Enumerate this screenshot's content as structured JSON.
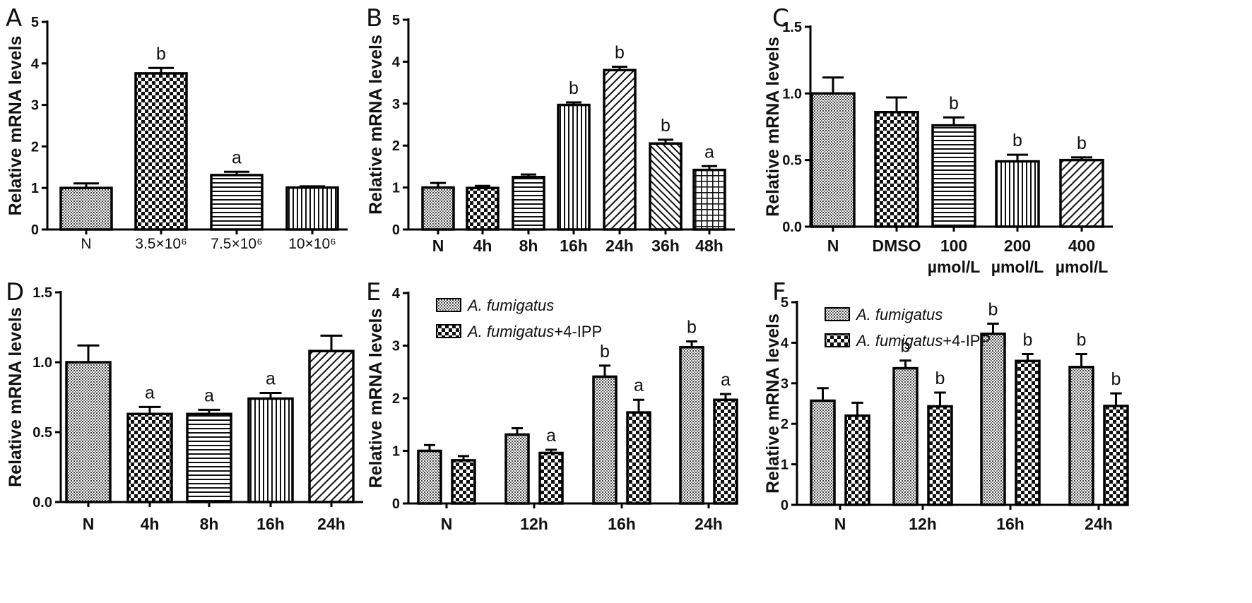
{
  "chart_data": [
    {
      "panel": "A",
      "type": "bar",
      "ylabel": "Relative mRNA levels",
      "ylim": [
        0,
        5
      ],
      "yticks": [
        "0",
        "1",
        "2",
        "3",
        "4",
        "5"
      ],
      "categories": [
        "N",
        "3.5×10⁶",
        "7.5×10⁶",
        "10×10⁶"
      ],
      "values": [
        1.0,
        3.76,
        1.31,
        1.01
      ],
      "errors": [
        0.11,
        0.13,
        0.08,
        0.03
      ],
      "sig": [
        "",
        "b",
        "a",
        ""
      ],
      "patterns": [
        "dots",
        "check",
        "hlines",
        "vlines"
      ]
    },
    {
      "panel": "B",
      "type": "bar",
      "ylabel": "Relative mRNA levels",
      "ylim": [
        0,
        5
      ],
      "yticks": [
        "0",
        "1",
        "2",
        "3",
        "4",
        "5"
      ],
      "categories": [
        "N",
        "4h",
        "8h",
        "16h",
        "24h",
        "36h",
        "48h"
      ],
      "values": [
        1.0,
        0.99,
        1.25,
        2.97,
        3.8,
        2.05,
        1.42
      ],
      "errors": [
        0.11,
        0.05,
        0.06,
        0.06,
        0.08,
        0.09,
        0.09
      ],
      "sig": [
        "",
        "",
        "",
        "b",
        "b",
        "b",
        "a"
      ],
      "patterns": [
        "dots",
        "check",
        "hlines",
        "vlines",
        "diag",
        "diagback",
        "grid"
      ]
    },
    {
      "panel": "C",
      "type": "bar",
      "ylabel": "Relative mRNA levels",
      "ylim": [
        0,
        1.5
      ],
      "yticks": [
        "0.0",
        "0.5",
        "1.0",
        "1.5"
      ],
      "categories": [
        "N",
        "DMSO",
        "100 µmol/L",
        "200 µmol/L",
        "400 µmol/L"
      ],
      "values": [
        1.0,
        0.86,
        0.76,
        0.49,
        0.5
      ],
      "errors": [
        0.12,
        0.11,
        0.06,
        0.05,
        0.02
      ],
      "sig": [
        "",
        "",
        "b",
        "b",
        "b"
      ],
      "patterns": [
        "dots",
        "check",
        "hlines",
        "vlines",
        "diag"
      ]
    },
    {
      "panel": "D",
      "type": "bar",
      "ylabel": "Relative mRNA levels",
      "ylim": [
        0,
        1.5
      ],
      "yticks": [
        "0.0",
        "0.5",
        "1.0",
        "1.5"
      ],
      "categories": [
        "N",
        "4h",
        "8h",
        "16h",
        "24h"
      ],
      "values": [
        1.0,
        0.63,
        0.63,
        0.74,
        1.08
      ],
      "errors": [
        0.12,
        0.05,
        0.03,
        0.04,
        0.11
      ],
      "sig": [
        "",
        "a",
        "a",
        "a",
        ""
      ],
      "patterns": [
        "dots",
        "check",
        "hlines",
        "vlines",
        "diag"
      ]
    },
    {
      "panel": "E",
      "type": "bar",
      "ylabel": "Relative mRNA levels",
      "ylim": [
        0,
        4
      ],
      "yticks": [
        "0",
        "1",
        "2",
        "3",
        "4"
      ],
      "categories": [
        "N",
        "12h",
        "16h",
        "24h"
      ],
      "legend": {
        "placement": "top-left",
        "entries": [
          {
            "italic": "A. fumigatus",
            "rest": ""
          },
          {
            "italic": "A. fumigatus",
            "rest": "+4-IPP"
          }
        ]
      },
      "series": [
        {
          "values": [
            1.0,
            1.31,
            2.41,
            2.97
          ],
          "errors": [
            0.11,
            0.12,
            0.21,
            0.11
          ],
          "sig": [
            "",
            "",
            "b",
            "b"
          ],
          "pattern": "dots"
        },
        {
          "values": [
            0.82,
            0.96,
            1.73,
            1.97
          ],
          "errors": [
            0.08,
            0.06,
            0.24,
            0.11
          ],
          "sig": [
            "",
            "a",
            "a",
            "a"
          ],
          "pattern": "check"
        }
      ]
    },
    {
      "panel": "F",
      "type": "bar",
      "ylabel": "Relative mRNA levels",
      "ylim": [
        0,
        5
      ],
      "yticks": [
        "0",
        "1",
        "2",
        "3",
        "4",
        "5"
      ],
      "categories": [
        "N",
        "12h",
        "16h",
        "24h"
      ],
      "legend": {
        "placement": "top-left",
        "entries": [
          {
            "italic": "A. fumigatus",
            "rest": ""
          },
          {
            "italic": "A. fumigatus",
            "rest": "+4-IPP"
          }
        ]
      },
      "series": [
        {
          "values": [
            2.57,
            3.37,
            4.22,
            3.4
          ],
          "errors": [
            0.31,
            0.19,
            0.25,
            0.32
          ],
          "sig": [
            "",
            "b",
            "b",
            "b"
          ],
          "pattern": "dots"
        },
        {
          "values": [
            2.2,
            2.43,
            3.55,
            2.44
          ],
          "errors": [
            0.32,
            0.34,
            0.17,
            0.31
          ],
          "sig": [
            "",
            "b",
            "b",
            "b"
          ],
          "pattern": "check"
        }
      ]
    }
  ]
}
